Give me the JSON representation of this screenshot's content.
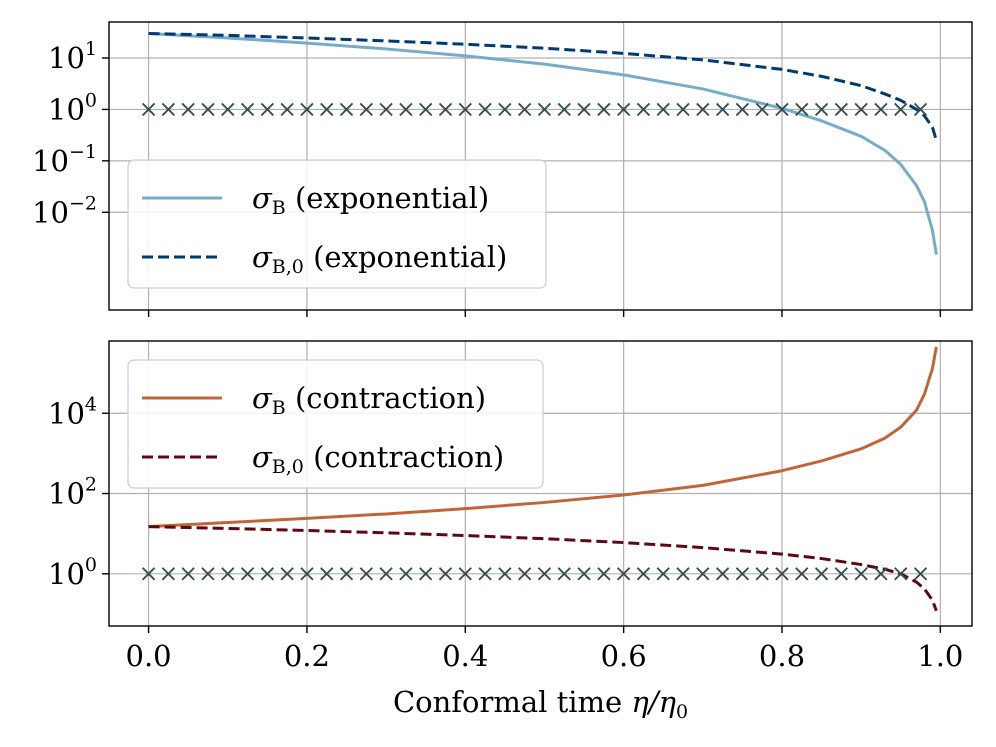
{
  "chart_data": [
    {
      "type": "line",
      "yscale": "log",
      "xlim": [
        -0.05,
        1.04
      ],
      "ylim_log10": [
        -3.9,
        1.7
      ],
      "xticks": [
        "0.0",
        "0.2",
        "0.4",
        "0.6",
        "0.8",
        "1.0"
      ],
      "xtick_labels_visible": false,
      "yticks": [
        {
          "base": "10",
          "exp": "1"
        },
        {
          "base": "10",
          "exp": "0"
        },
        {
          "base": "10",
          "exp": "−1"
        },
        {
          "base": "10",
          "exp": "−2"
        }
      ],
      "grid": true,
      "legend_position": "lower-left",
      "series": [
        {
          "name_main": "σ",
          "name_sub": "B",
          "name_rest": " (exponential)",
          "color": "#76acc7",
          "dash": "solid",
          "x": [
            0.0,
            0.1,
            0.2,
            0.3,
            0.4,
            0.5,
            0.6,
            0.7,
            0.8,
            0.85,
            0.9,
            0.93,
            0.95,
            0.97,
            0.98,
            0.99,
            0.995
          ],
          "y": [
            30,
            24.5,
            19.5,
            15,
            11,
            7.6,
            4.7,
            2.5,
            1.05,
            0.6,
            0.3,
            0.16,
            0.085,
            0.033,
            0.016,
            0.0045,
            0.0015
          ]
        },
        {
          "name_main": "σ",
          "name_sub": "B,0",
          "name_rest": " (exponential)",
          "color": "#003a70",
          "dash": "dashed",
          "x": [
            0.0,
            0.1,
            0.2,
            0.3,
            0.4,
            0.5,
            0.6,
            0.7,
            0.8,
            0.85,
            0.9,
            0.93,
            0.95,
            0.97,
            0.98,
            0.99,
            0.995
          ],
          "y": [
            30,
            27.5,
            24.5,
            21.5,
            18.5,
            15.5,
            12.3,
            9.2,
            6.0,
            4.4,
            2.9,
            2.0,
            1.5,
            1.0,
            0.75,
            0.45,
            0.25
          ]
        },
        {
          "name_main": "",
          "name_sub": "",
          "name_rest": "",
          "color": "#35504f",
          "dash": "marker-x",
          "legend": false,
          "x_start": 0.0,
          "x_end": 0.975,
          "n": 40,
          "y_const": 1
        }
      ]
    },
    {
      "type": "line",
      "yscale": "log",
      "xlim": [
        -0.05,
        1.04
      ],
      "ylim_log10": [
        -1.3,
        5.8
      ],
      "xticks": [
        "0.0",
        "0.2",
        "0.4",
        "0.6",
        "0.8",
        "1.0"
      ],
      "yticks": [
        {
          "base": "10",
          "exp": "4"
        },
        {
          "base": "10",
          "exp": "2"
        },
        {
          "base": "10",
          "exp": "0"
        }
      ],
      "xlabel_prefix": "Conformal time ",
      "xlabel_math": "η/η",
      "xlabel_sub": "0",
      "grid": true,
      "legend_position": "upper-left",
      "series": [
        {
          "name_main": "σ",
          "name_sub": "B",
          "name_rest": " (contraction)",
          "color": "#c0653a",
          "dash": "solid",
          "x": [
            0.0,
            0.1,
            0.2,
            0.3,
            0.4,
            0.5,
            0.6,
            0.7,
            0.8,
            0.85,
            0.9,
            0.93,
            0.95,
            0.97,
            0.98,
            0.99,
            0.995
          ],
          "y": [
            15,
            19,
            24,
            31,
            42,
            60,
            92,
            160,
            370,
            650,
            1300,
            2400,
            4500,
            12000,
            30000,
            130000,
            450000
          ]
        },
        {
          "name_main": "σ",
          "name_sub": "B,0",
          "name_rest": " (contraction)",
          "color": "#5c0a10",
          "dash": "dashed",
          "x": [
            0.0,
            0.1,
            0.2,
            0.3,
            0.4,
            0.5,
            0.6,
            0.7,
            0.8,
            0.85,
            0.9,
            0.93,
            0.95,
            0.97,
            0.98,
            0.99,
            0.995
          ],
          "y": [
            15,
            13.5,
            12,
            10.5,
            9.0,
            7.5,
            6.0,
            4.5,
            3.1,
            2.4,
            1.7,
            1.3,
            1.0,
            0.62,
            0.42,
            0.22,
            0.12
          ]
        },
        {
          "name_main": "",
          "name_sub": "",
          "name_rest": "",
          "color": "#35504f",
          "dash": "marker-x",
          "legend": false,
          "x_start": 0.0,
          "x_end": 0.975,
          "n": 40,
          "y_const": 1
        }
      ]
    }
  ]
}
